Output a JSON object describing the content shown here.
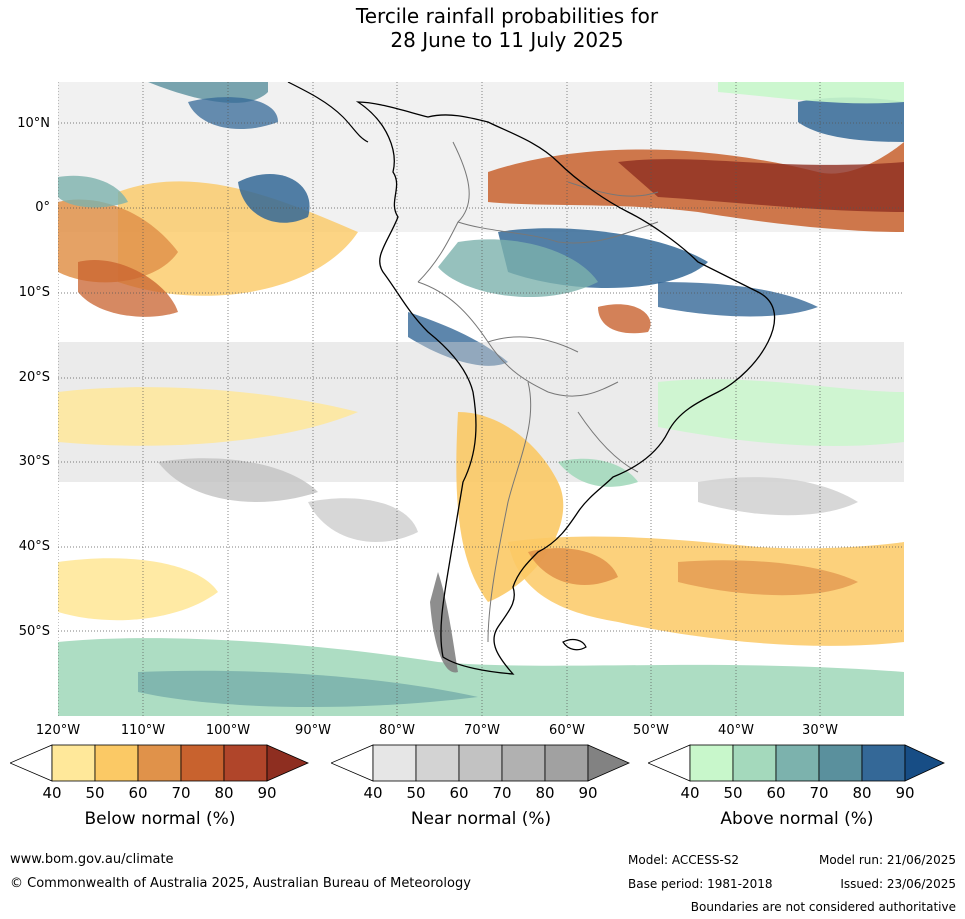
{
  "title_line1": "Tercile rainfall probabilities for",
  "title_line2": "28 June to 11 July 2025",
  "lat_labels": [
    "10°N",
    "0°",
    "10°S",
    "20°S",
    "30°S",
    "40°S",
    "50°S"
  ],
  "lon_labels": [
    "120°W",
    "110°W",
    "100°W",
    "90°W",
    "80°W",
    "70°W",
    "60°W",
    "50°W",
    "40°W",
    "30°W"
  ],
  "colorbars": [
    {
      "title": "Below normal (%)",
      "ticks": [
        "40",
        "50",
        "60",
        "70",
        "80",
        "90"
      ],
      "colors": [
        "#ffffff",
        "#ffe89a",
        "#fbc965",
        "#e0924a",
        "#c8622e",
        "#b0452a",
        "#8e2e20"
      ]
    },
    {
      "title": "Near normal (%)",
      "ticks": [
        "40",
        "50",
        "60",
        "70",
        "80",
        "90"
      ],
      "colors": [
        "#ffffff",
        "#e6e6e6",
        "#d3d3d3",
        "#c2c2c2",
        "#b1b1b1",
        "#a1a1a1",
        "#828282"
      ]
    },
    {
      "title": "Above normal (%)",
      "ticks": [
        "40",
        "50",
        "60",
        "70",
        "80",
        "90"
      ],
      "colors": [
        "#ffffff",
        "#c8f7cb",
        "#a4d9bc",
        "#7cb2ad",
        "#5a909d",
        "#346897",
        "#174d85"
      ]
    }
  ],
  "footer": {
    "url": "www.bom.gov.au/climate",
    "copyright": "© Commonwealth of Australia 2025, Australian Bureau of Meteorology",
    "model": "Model: ACCESS-S2",
    "base_period": "Base period: 1981-2018",
    "model_run": "Model run: 21/06/2025",
    "issued": "Issued: 23/06/2025",
    "boundaries": "Boundaries are not considered authoritative"
  }
}
